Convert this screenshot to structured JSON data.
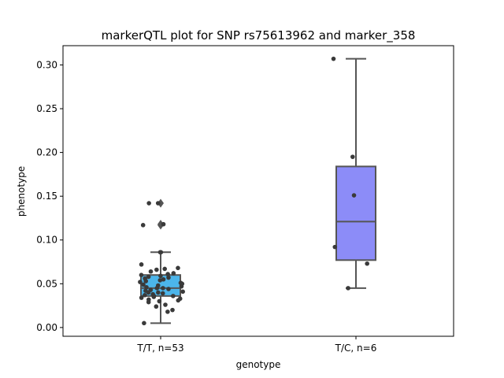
{
  "chart_data": {
    "type": "box",
    "title": "markerQTL plot for SNP rs75613962 and marker_358",
    "xlabel": "genotype",
    "ylabel": "phenotype",
    "ylim": [
      -0.01,
      0.322
    ],
    "yticks": [
      "0.00",
      "0.05",
      "0.10",
      "0.15",
      "0.20",
      "0.25",
      "0.30"
    ],
    "ytick_values": [
      0.0,
      0.05,
      0.1,
      0.15,
      0.2,
      0.25,
      0.3
    ],
    "categories": [
      "T/T, n=53",
      "T/C, n=6"
    ],
    "boxes": [
      {
        "category": "T/T, n=53",
        "color": "#4cb5ea",
        "q1": 0.036,
        "median": 0.045,
        "q3": 0.06,
        "whisker_low": 0.005,
        "whisker_high": 0.086,
        "outliers": [
          0.117,
          0.118,
          0.142
        ],
        "points": [
          0.086,
          0.118,
          0.117,
          0.142,
          0.142,
          0.086,
          0.072,
          0.068,
          0.067,
          0.066,
          0.064,
          0.062,
          0.061,
          0.06,
          0.059,
          0.058,
          0.057,
          0.056,
          0.055,
          0.054,
          0.053,
          0.052,
          0.051,
          0.05,
          0.049,
          0.048,
          0.047,
          0.046,
          0.045,
          0.045,
          0.044,
          0.043,
          0.042,
          0.041,
          0.04,
          0.04,
          0.039,
          0.038,
          0.037,
          0.036,
          0.036,
          0.035,
          0.034,
          0.033,
          0.032,
          0.031,
          0.03,
          0.029,
          0.026,
          0.024,
          0.02,
          0.018,
          0.005
        ]
      },
      {
        "category": "T/C, n=6",
        "color": "#8c8cf8",
        "q1": 0.077,
        "median": 0.121,
        "q3": 0.184,
        "whisker_low": 0.045,
        "whisker_high": 0.307,
        "outliers": [],
        "points": [
          0.307,
          0.195,
          0.151,
          0.092,
          0.073,
          0.045
        ]
      }
    ],
    "grid": false,
    "legend": "none"
  }
}
